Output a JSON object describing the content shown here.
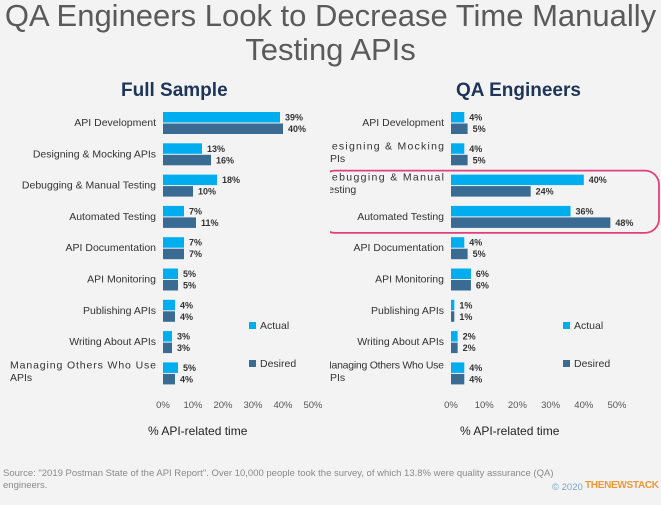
{
  "title_line1": "QA Engineers Look to Decrease Time Manually",
  "title_line2": "Testing APIs",
  "chart_data": [
    {
      "type": "bar",
      "orientation": "horizontal",
      "title": "Full Sample",
      "categories": [
        "API Development",
        "Designing & Mocking APIs",
        "Debugging & Manual Testing",
        "Automated Testing",
        "API Documentation",
        "API Monitoring",
        "Publishing APIs",
        "Writing About APIs",
        "Managing Others Who Use APIs"
      ],
      "series": [
        {
          "name": "Actual",
          "values": [
            39,
            13,
            18,
            7,
            7,
            5,
            4,
            3,
            5
          ],
          "color": "#00aeef"
        },
        {
          "name": "Desired",
          "values": [
            40,
            16,
            10,
            11,
            7,
            5,
            4,
            3,
            4
          ],
          "color": "#3a6b93"
        }
      ],
      "data_labels": [
        [
          "39%",
          "13%",
          "18%",
          "7%",
          "7%",
          "5%",
          "4%",
          "3%",
          "5%"
        ],
        [
          "40%",
          "16%",
          "10%",
          "11%",
          "7%",
          "5%",
          "4%",
          "3%",
          "4%"
        ]
      ],
      "xlim": [
        0,
        50
      ],
      "xticks": [
        "0%",
        "10%",
        "20%",
        "30%",
        "40%",
        "50%"
      ],
      "xlabel": "% API-related time",
      "legend": [
        "Actual",
        "Desired"
      ],
      "legend_position": "bottom-right"
    },
    {
      "type": "bar",
      "orientation": "horizontal",
      "title": "QA Engineers",
      "categories": [
        "API Development",
        "Designing & Mocking APIs",
        "Debugging & Manual Testing",
        "Automated Testing",
        "API Documentation",
        "API Monitoring",
        "Publishing APIs",
        "Writing About APIs",
        "Managing Others Who Use APIs"
      ],
      "series": [
        {
          "name": "Actual",
          "values": [
            4,
            4,
            40,
            36,
            4,
            6,
            1,
            2,
            4
          ],
          "color": "#00aeef"
        },
        {
          "name": "Desired",
          "values": [
            5,
            5,
            24,
            48,
            5,
            6,
            1,
            2,
            4
          ],
          "color": "#3a6b93"
        }
      ],
      "data_labels": [
        [
          "4%",
          "4%",
          "40%",
          "36%",
          "4%",
          "6%",
          "1%",
          "2%",
          "4%"
        ],
        [
          "5%",
          "5%",
          "24%",
          "48%",
          "5%",
          "6%",
          "1%",
          "2%",
          "4%"
        ]
      ],
      "xlim": [
        0,
        50
      ],
      "xticks": [
        "0%",
        "10%",
        "20%",
        "30%",
        "40%",
        "50%"
      ],
      "xlabel": "% API-related time",
      "legend": [
        "Actual",
        "Desired"
      ],
      "legend_position": "bottom-right",
      "highlighted_categories": [
        "Debugging & Manual Testing",
        "Automated Testing"
      ],
      "highlight_color": "#e0417a"
    }
  ],
  "source": "Source: \"2019 Postman State of the API Report\". Over 10,000 people took the survey, of which 13.8% were quality assurance (QA) engineers.",
  "credit": "© 2020",
  "brand": "THENEWSTACK"
}
